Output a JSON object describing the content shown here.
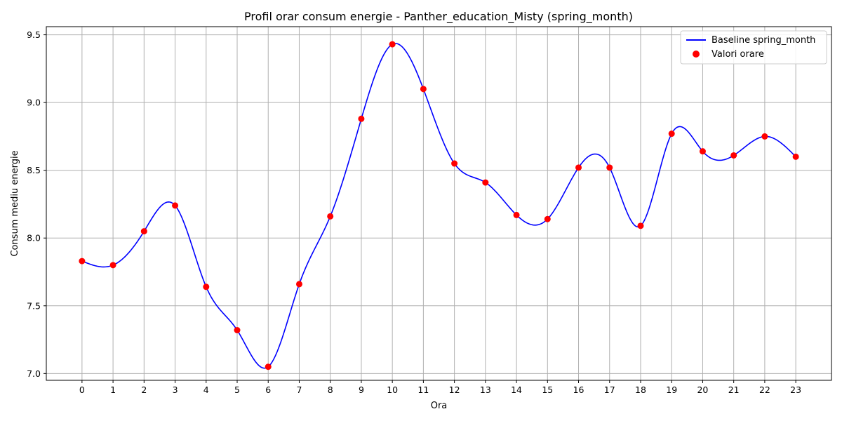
{
  "chart_data": {
    "type": "line",
    "title": "Profil orar consum energie - Panther_education_Misty (spring_month)",
    "xlabel": "Ora",
    "ylabel": "Consum mediu energie",
    "x": [
      0,
      1,
      2,
      3,
      4,
      5,
      6,
      7,
      8,
      9,
      10,
      11,
      12,
      13,
      14,
      15,
      16,
      17,
      18,
      19,
      20,
      21,
      22,
      23
    ],
    "x_ticks": [
      "0",
      "1",
      "2",
      "3",
      "4",
      "5",
      "6",
      "7",
      "8",
      "9",
      "10",
      "11",
      "12",
      "13",
      "14",
      "15",
      "16",
      "17",
      "18",
      "19",
      "20",
      "21",
      "22",
      "23"
    ],
    "xlim": [
      -1.15,
      24.15
    ],
    "y_ticks": [
      "7.0",
      "7.5",
      "8.0",
      "8.5",
      "9.0",
      "9.5"
    ],
    "ylim": [
      6.95,
      9.56
    ],
    "grid": true,
    "legend_position": "top-right",
    "series": [
      {
        "name": "Baseline spring_month",
        "kind": "smooth-line",
        "color": "#0000ff",
        "values": [
          7.83,
          7.8,
          8.05,
          8.24,
          7.64,
          7.32,
          7.05,
          7.66,
          8.16,
          8.88,
          9.43,
          9.1,
          8.55,
          8.41,
          8.17,
          8.14,
          8.52,
          8.52,
          8.09,
          8.77,
          8.64,
          8.61,
          8.75,
          8.6
        ]
      },
      {
        "name": "Valori orare",
        "kind": "scatter",
        "color": "#ff0000",
        "values": [
          7.83,
          7.8,
          8.05,
          8.24,
          7.64,
          7.32,
          7.05,
          7.66,
          8.16,
          8.88,
          9.43,
          9.1,
          8.55,
          8.41,
          8.17,
          8.14,
          8.52,
          8.52,
          8.09,
          8.77,
          8.64,
          8.61,
          8.75,
          8.6
        ]
      }
    ]
  }
}
